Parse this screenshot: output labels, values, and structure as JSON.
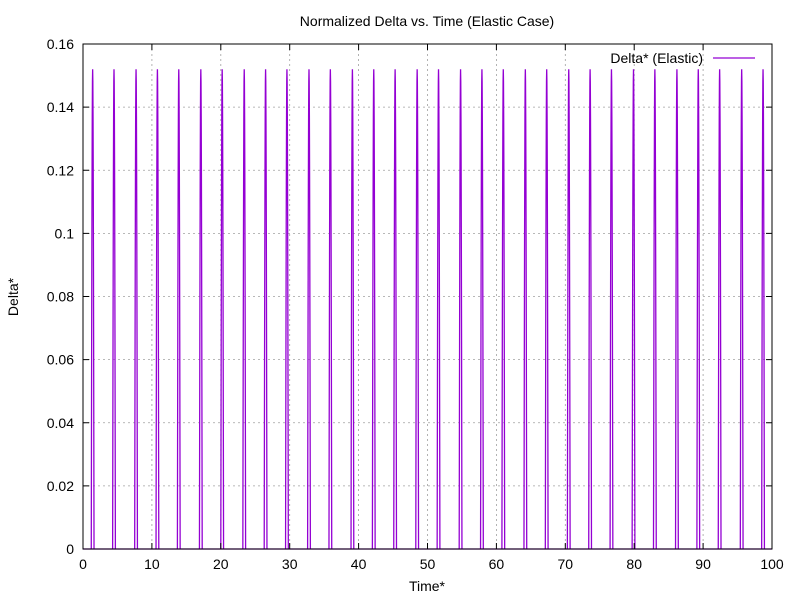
{
  "chart_data": {
    "type": "line",
    "title": "Normalized Delta vs. Time (Elastic Case)",
    "xlabel": "Time*",
    "ylabel": "Delta*",
    "xlim": [
      0,
      100
    ],
    "ylim": [
      0,
      0.16
    ],
    "x_ticks": [
      0,
      10,
      20,
      30,
      40,
      50,
      60,
      70,
      80,
      90,
      100
    ],
    "x_tick_labels": [
      "0",
      "10",
      "20",
      "30",
      "40",
      "50",
      "60",
      "70",
      "80",
      "90",
      "100"
    ],
    "y_ticks": [
      0,
      0.02,
      0.04,
      0.06,
      0.08,
      0.1,
      0.12,
      0.14,
      0.16
    ],
    "y_tick_labels": [
      "0",
      "0.02",
      "0.04",
      "0.06",
      "0.08",
      "0.1",
      "0.12",
      "0.14",
      "0.16"
    ],
    "grid": true,
    "legend_position": "top-right",
    "series": [
      {
        "name": "Delta* (Elastic)",
        "color": "#9400d3",
        "peak_value": 0.152,
        "period": 3.14,
        "pulse_width": 0.4,
        "peak_times": [
          1.4,
          4.5,
          7.7,
          10.8,
          13.9,
          17.1,
          20.2,
          23.4,
          26.5,
          29.6,
          32.8,
          35.9,
          39.1,
          42.2,
          45.3,
          48.5,
          51.6,
          54.8,
          57.9,
          61.0,
          64.2,
          67.3,
          70.5,
          73.6,
          76.7,
          79.9,
          83.0,
          86.2,
          89.3,
          92.4,
          95.6,
          98.7
        ]
      }
    ]
  }
}
